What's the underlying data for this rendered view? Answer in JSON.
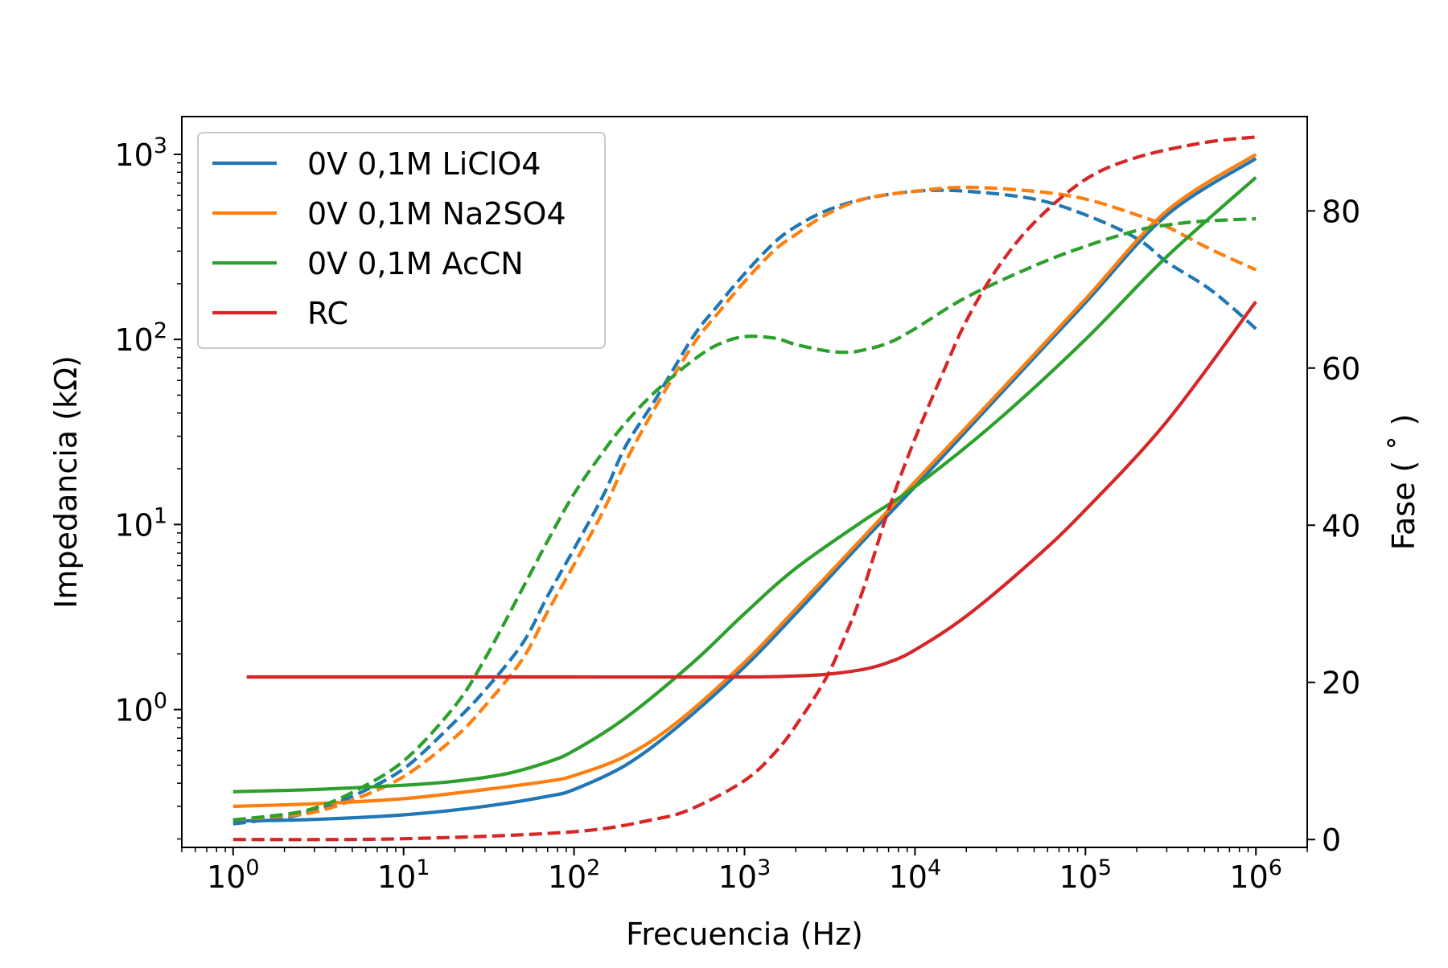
{
  "chart_data": {
    "type": "line",
    "title": "",
    "xlabel": "Frecuencia (Hz)",
    "ylabel_left": "Impedancia (kΩ)",
    "ylabel_right": "Fase ( ˚ )",
    "x_scale": "log",
    "y_left_scale": "log",
    "y_right_scale": "linear",
    "xlim": [
      0.5,
      2000000
    ],
    "ylim_left": [
      0.18,
      1600
    ],
    "ylim_right": [
      -1,
      92
    ],
    "x_ticks": [
      {
        "value": 1,
        "base": "10",
        "exp": "0"
      },
      {
        "value": 10,
        "base": "10",
        "exp": "1"
      },
      {
        "value": 100,
        "base": "10",
        "exp": "2"
      },
      {
        "value": 1000,
        "base": "10",
        "exp": "3"
      },
      {
        "value": 10000,
        "base": "10",
        "exp": "4"
      },
      {
        "value": 100000,
        "base": "10",
        "exp": "5"
      },
      {
        "value": 1000000,
        "base": "10",
        "exp": "6"
      }
    ],
    "y_left_ticks": [
      {
        "value": 1,
        "base": "10",
        "exp": "0"
      },
      {
        "value": 10,
        "base": "10",
        "exp": "1"
      },
      {
        "value": 100,
        "base": "10",
        "exp": "2"
      },
      {
        "value": 1000,
        "base": "10",
        "exp": "3"
      }
    ],
    "y_right_ticks": [
      0,
      20,
      40,
      60,
      80
    ],
    "grid": false,
    "legend_position": "top-left",
    "legend": [
      "0V 0,1M LiClO4",
      "0V 0,1M Na2SO4",
      "0V 0,1M AcCN",
      "RC"
    ],
    "line_styles": {
      "impedance": "solid",
      "phase": "dashed"
    },
    "series": [
      {
        "name": "0V 0,1M LiClO4",
        "color": "#1f77b4",
        "impedance": {
          "x": [
            1,
            3,
            10,
            30,
            70,
            100,
            200,
            400,
            1000,
            2000,
            5000,
            10000,
            30000,
            100000,
            300000,
            1000000
          ],
          "y": [
            0.25,
            0.255,
            0.27,
            0.3,
            0.34,
            0.37,
            0.5,
            0.8,
            1.7,
            3.3,
            8.2,
            16,
            48,
            158,
            470,
            950
          ]
        },
        "phase": {
          "x": [
            1,
            2,
            3,
            5,
            10,
            20,
            30,
            50,
            70,
            100,
            150,
            200,
            300,
            500,
            700,
            1000,
            1500,
            2000,
            3000,
            5000,
            10000,
            20000,
            50000,
            100000,
            200000,
            300000,
            500000,
            700000,
            1000000
          ],
          "y": [
            2,
            2.8,
            3.7,
            5.5,
            9,
            15,
            19,
            25,
            31,
            37,
            44,
            50,
            56,
            64,
            68,
            72,
            76,
            78,
            80,
            81.5,
            82.5,
            82.5,
            81.5,
            79.5,
            76.5,
            73.5,
            70.5,
            68,
            65
          ]
        }
      },
      {
        "name": "0V 0,1M Na2SO4",
        "color": "#ff7f0e",
        "impedance": {
          "x": [
            1,
            3,
            10,
            30,
            70,
            100,
            200,
            400,
            1000,
            2000,
            5000,
            10000,
            30000,
            100000,
            300000,
            1000000
          ],
          "y": [
            0.3,
            0.31,
            0.33,
            0.37,
            0.41,
            0.44,
            0.56,
            0.85,
            1.8,
            3.5,
            8.6,
            17,
            50,
            165,
            495,
            1000
          ]
        },
        "phase": {
          "x": [
            1,
            2,
            3,
            5,
            10,
            20,
            30,
            50,
            70,
            100,
            150,
            200,
            300,
            500,
            700,
            1000,
            1500,
            2000,
            3000,
            5000,
            10000,
            20000,
            50000,
            100000,
            200000,
            300000,
            500000,
            700000,
            1000000
          ],
          "y": [
            2.5,
            3,
            3.5,
            5,
            8,
            13,
            17,
            23,
            29,
            35,
            42,
            48,
            55,
            63,
            67,
            71,
            75,
            77,
            79.5,
            81.5,
            82.5,
            83,
            82.5,
            81.5,
            79.5,
            78,
            75.5,
            74,
            72.5
          ]
        }
      },
      {
        "name": "0V 0,1M AcCN",
        "color": "#2ca02c",
        "impedance": {
          "x": [
            1,
            3,
            10,
            20,
            40,
            70,
            100,
            200,
            500,
            1000,
            2000,
            5000,
            10000,
            30000,
            100000,
            300000,
            1000000
          ],
          "y": [
            0.36,
            0.37,
            0.39,
            0.41,
            0.45,
            0.52,
            0.6,
            0.9,
            1.8,
            3.3,
            5.8,
            10.5,
            16,
            36,
            100,
            280,
            750
          ]
        },
        "phase": {
          "x": [
            1,
            2,
            3,
            5,
            10,
            20,
            30,
            50,
            70,
            100,
            150,
            200,
            300,
            500,
            700,
            1000,
            1500,
            2000,
            3000,
            4000,
            5000,
            7000,
            10000,
            20000,
            50000,
            100000,
            200000,
            300000,
            500000,
            1000000
          ],
          "y": [
            2.5,
            3.2,
            4,
            6,
            10,
            17,
            23,
            32,
            38,
            44,
            49.5,
            53,
            57,
            61,
            63,
            64,
            63.8,
            63,
            62.2,
            62,
            62.3,
            63.2,
            65,
            69,
            73,
            75.5,
            77.5,
            78.2,
            78.7,
            79
          ]
        }
      },
      {
        "name": "RC",
        "color": "#d62728",
        "impedance": {
          "x": [
            1.2,
            10,
            100,
            1000,
            2000,
            3000,
            5000,
            7000,
            10000,
            20000,
            50000,
            100000,
            300000,
            1000000
          ],
          "y": [
            1.5,
            1.5,
            1.5,
            1.5,
            1.52,
            1.55,
            1.65,
            1.8,
            2.1,
            3.2,
            6.5,
            12,
            36,
            160
          ]
        },
        "phase": {
          "x": [
            1,
            10,
            100,
            300,
            500,
            1000,
            1500,
            2000,
            3000,
            4000,
            5000,
            7000,
            10000,
            15000,
            20000,
            30000,
            50000,
            100000,
            200000,
            500000,
            1000000
          ],
          "y": [
            0,
            0.1,
            1,
            2.6,
            4,
            7.5,
            11,
            14.5,
            20.5,
            26.5,
            32,
            42,
            51,
            60,
            66,
            72.5,
            78.5,
            84,
            86.8,
            88.7,
            89.4
          ]
        }
      }
    ]
  }
}
